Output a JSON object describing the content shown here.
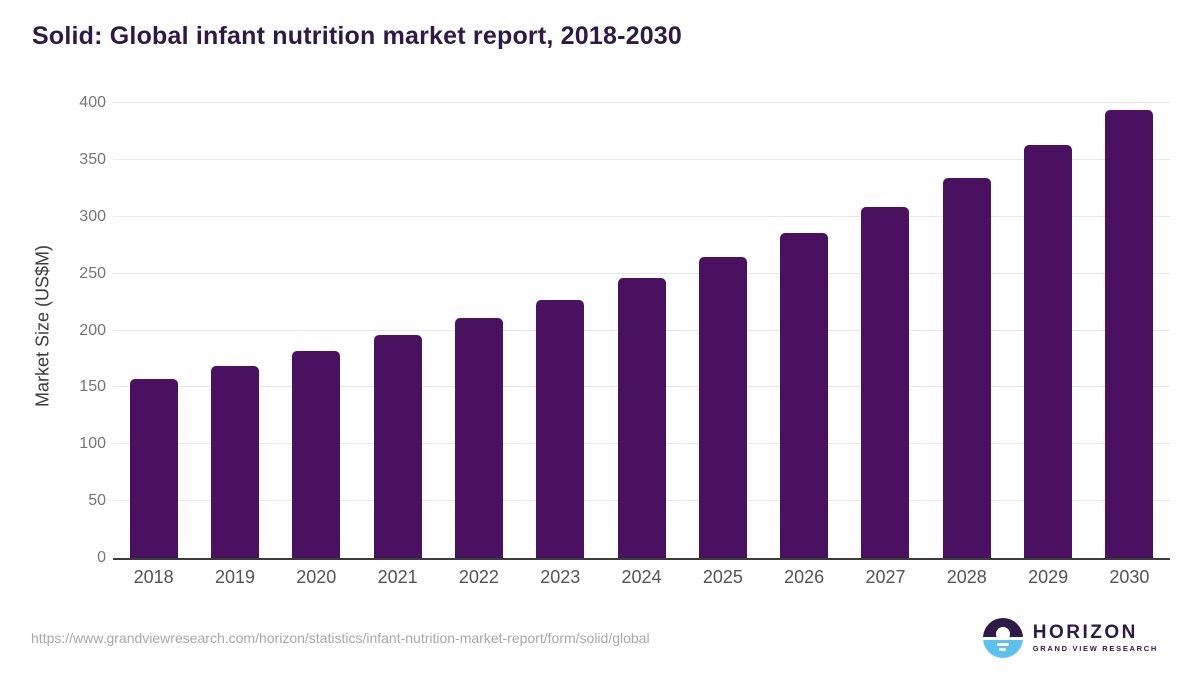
{
  "title": "Solid: Global infant nutrition market report, 2018-2030",
  "chart_data": {
    "type": "bar",
    "title": "Solid: Global infant nutrition market report, 2018-2030",
    "categories": [
      "2018",
      "2019",
      "2020",
      "2021",
      "2022",
      "2023",
      "2024",
      "2025",
      "2026",
      "2027",
      "2028",
      "2029",
      "2030"
    ],
    "values": [
      157,
      169,
      182,
      196,
      211,
      227,
      246,
      265,
      286,
      309,
      334,
      363,
      394
    ],
    "xlabel": "",
    "ylabel": "Market Size (US$M)",
    "ylim": [
      0,
      400
    ],
    "yticks": [
      0,
      50,
      100,
      150,
      200,
      250,
      300,
      350,
      400
    ],
    "grid": true,
    "legend": false
  },
  "footer": {
    "source_url": "https://www.grandviewresearch.com/horizon/statistics/infant-nutrition-market-report/form/solid/global",
    "logo": {
      "name": "HORIZON",
      "tagline": "GRAND VIEW RESEARCH"
    }
  },
  "colors": {
    "bar": "#4a1161",
    "title_text": "#2d1a47",
    "gridline": "#e8e8e8",
    "baseline": "#3c3c3c",
    "y_tick_label": "#767676",
    "x_tick_label": "#545454",
    "url_text": "#a8a8a8",
    "logo_purple": "#2d1a47",
    "logo_blue": "#5bc2ee"
  }
}
